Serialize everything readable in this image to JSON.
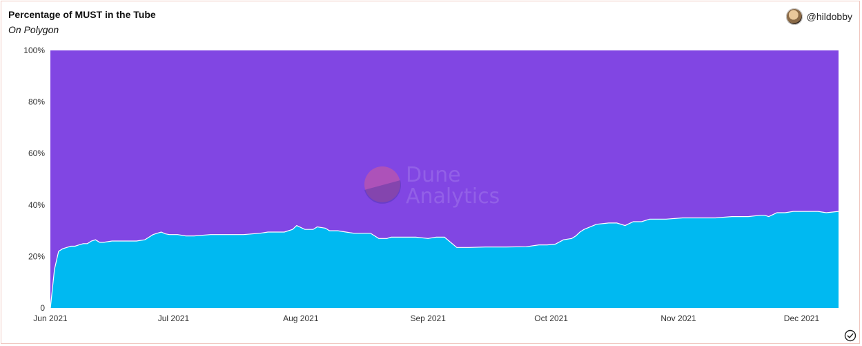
{
  "header": {
    "title": "Percentage of MUST in the Tube",
    "subtitle": "On Polygon",
    "author": "@hildobby"
  },
  "watermark": {
    "line1": "Dune",
    "line2": "Analytics"
  },
  "colors": {
    "lower_series": "#00b9f1",
    "upper_series": "#8146e3",
    "frame_border": "#f1c7c0"
  },
  "chart_data": {
    "type": "area",
    "stacked_percent": true,
    "grid": false,
    "legend": "none",
    "x_range": [
      "2021-06-01",
      "2021-12-10"
    ],
    "y_range": [
      0,
      100
    ],
    "y_ticks": [
      {
        "value": 0,
        "label": "0"
      },
      {
        "value": 20,
        "label": "20%"
      },
      {
        "value": 40,
        "label": "40%"
      },
      {
        "value": 60,
        "label": "60%"
      },
      {
        "value": 80,
        "label": "80%"
      },
      {
        "value": 100,
        "label": "100%"
      }
    ],
    "x_ticks": [
      {
        "date": "2021-06-01",
        "label": "Jun 2021"
      },
      {
        "date": "2021-07-01",
        "label": "Jul 2021"
      },
      {
        "date": "2021-08-01",
        "label": "Aug 2021"
      },
      {
        "date": "2021-09-01",
        "label": "Sep 2021"
      },
      {
        "date": "2021-10-01",
        "label": "Oct 2021"
      },
      {
        "date": "2021-11-01",
        "label": "Nov 2021"
      },
      {
        "date": "2021-12-01",
        "label": "Dec 2021"
      }
    ],
    "series_values": {
      "dates": [
        "2021-06-01",
        "2021-06-02",
        "2021-06-03",
        "2021-06-04",
        "2021-06-05",
        "2021-06-06",
        "2021-06-07",
        "2021-06-08",
        "2021-06-09",
        "2021-06-10",
        "2021-06-11",
        "2021-06-12",
        "2021-06-13",
        "2021-06-14",
        "2021-06-16",
        "2021-06-18",
        "2021-06-20",
        "2021-06-22",
        "2021-06-24",
        "2021-06-26",
        "2021-06-27",
        "2021-06-28",
        "2021-06-29",
        "2021-06-30",
        "2021-07-02",
        "2021-07-04",
        "2021-07-06",
        "2021-07-10",
        "2021-07-14",
        "2021-07-18",
        "2021-07-22",
        "2021-07-24",
        "2021-07-26",
        "2021-07-28",
        "2021-07-30",
        "2021-07-31",
        "2021-08-02",
        "2021-08-04",
        "2021-08-05",
        "2021-08-07",
        "2021-08-08",
        "2021-08-10",
        "2021-08-12",
        "2021-08-14",
        "2021-08-16",
        "2021-08-18",
        "2021-08-20",
        "2021-08-22",
        "2021-08-23",
        "2021-08-26",
        "2021-08-29",
        "2021-09-01",
        "2021-09-03",
        "2021-09-05",
        "2021-09-08",
        "2021-09-10",
        "2021-09-11",
        "2021-09-15",
        "2021-09-20",
        "2021-09-25",
        "2021-09-28",
        "2021-09-30",
        "2021-10-02",
        "2021-10-04",
        "2021-10-06",
        "2021-10-07",
        "2021-10-08",
        "2021-10-09",
        "2021-10-12",
        "2021-10-15",
        "2021-10-17",
        "2021-10-19",
        "2021-10-21",
        "2021-10-23",
        "2021-10-25",
        "2021-10-27",
        "2021-10-29",
        "2021-11-02",
        "2021-11-06",
        "2021-11-10",
        "2021-11-14",
        "2021-11-18",
        "2021-11-21",
        "2021-11-22",
        "2021-11-23",
        "2021-11-25",
        "2021-11-27",
        "2021-11-29",
        "2021-12-02",
        "2021-12-05",
        "2021-12-07",
        "2021-12-10"
      ],
      "must_in_tube_pct": [
        0,
        15,
        22,
        23,
        23.5,
        24,
        24,
        24.5,
        25,
        25,
        26,
        26.5,
        25.5,
        25.5,
        26,
        26,
        26,
        26,
        26.5,
        28.5,
        29,
        29.5,
        28.8,
        28.5,
        28.5,
        28,
        28,
        28.5,
        28.5,
        28.5,
        29,
        29.5,
        29.5,
        29.5,
        30.5,
        32,
        30.5,
        30.5,
        31.5,
        31,
        30,
        30,
        29.5,
        29,
        29,
        29,
        27,
        27,
        27.5,
        27.5,
        27.5,
        27,
        27.5,
        27.5,
        23.5,
        23.5,
        23.5,
        23.7,
        23.7,
        23.8,
        24.5,
        24.5,
        24.8,
        26.5,
        27,
        28,
        29.5,
        30.5,
        32.5,
        33,
        33,
        32,
        33.5,
        33.5,
        34.5,
        34.5,
        34.5,
        35,
        35,
        35,
        35.5,
        35.5,
        36,
        36,
        35.5,
        37,
        37,
        37.5,
        37.5,
        37.5,
        37,
        37.5
      ]
    }
  }
}
